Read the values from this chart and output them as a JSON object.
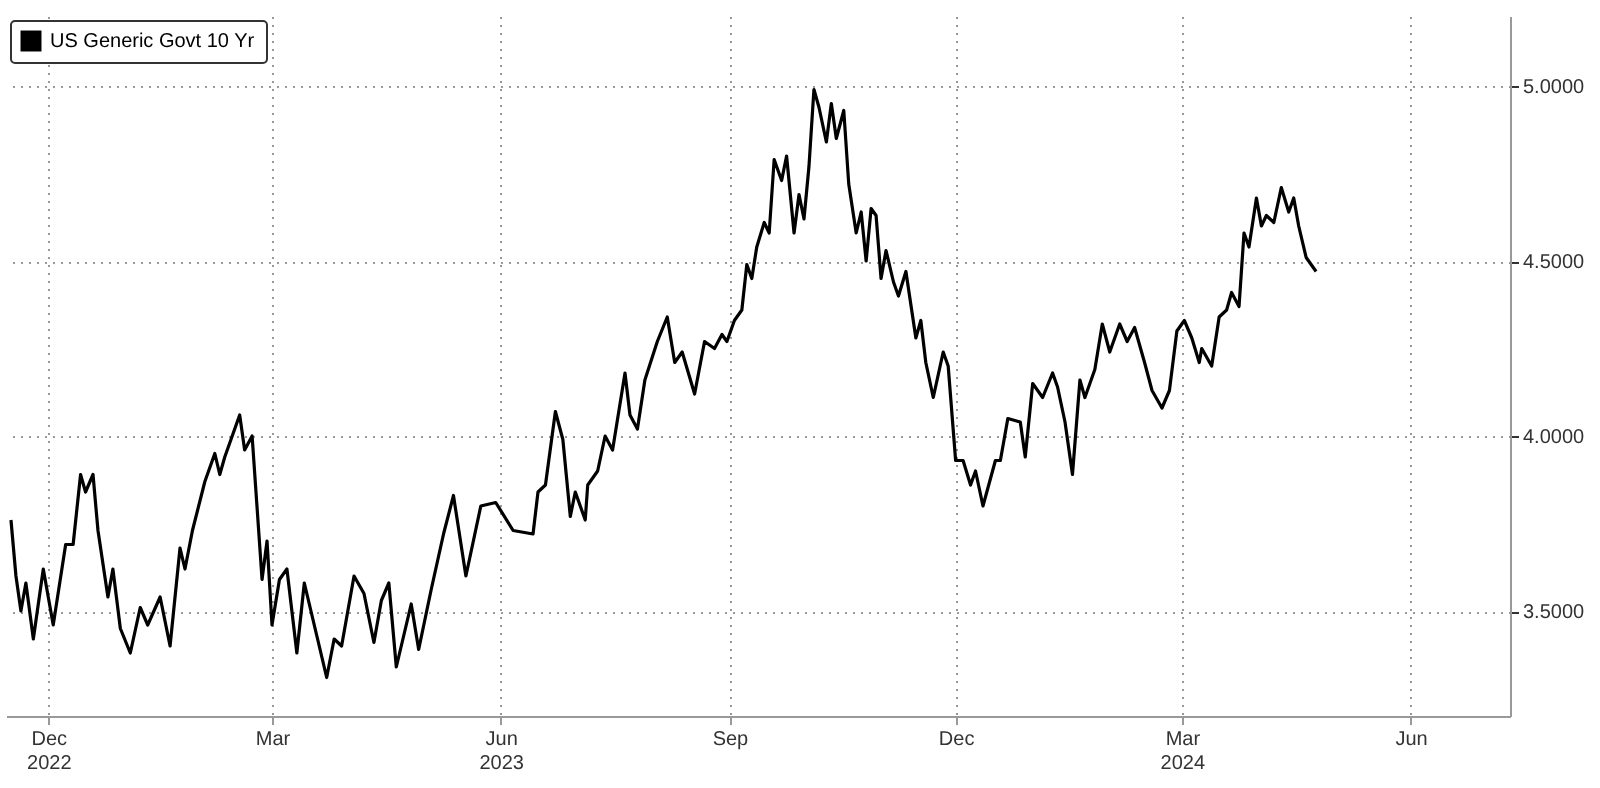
{
  "chart_data": {
    "type": "line",
    "legend": "top left",
    "grid": true,
    "xlim": [
      "2022-11-28",
      "2024-07-25"
    ],
    "ylim": [
      3.2,
      5.2
    ],
    "xticks": [
      {
        "value": "2022-12-15",
        "label": "Dec\n2022"
      },
      {
        "value": "2023-03-15",
        "label": "Mar"
      },
      {
        "value": "2023-06-15",
        "label": "Jun\n2023"
      },
      {
        "value": "2023-09-15",
        "label": "Sep"
      },
      {
        "value": "2023-12-15",
        "label": "Dec"
      },
      {
        "value": "2024-03-15",
        "label": "Mar\n2024"
      },
      {
        "value": "2024-06-15",
        "label": "Jun"
      }
    ],
    "yticks": [
      {
        "value": 3.5,
        "label": "3.5000"
      },
      {
        "value": 4.0,
        "label": "4.0000"
      },
      {
        "value": 4.5,
        "label": "4.5000"
      },
      {
        "value": 5.0,
        "label": "5.0000"
      }
    ],
    "x": [
      "2022-11-30",
      "2022-12-02",
      "2022-12-04",
      "2022-12-06",
      "2022-12-09",
      "2022-12-13",
      "2022-12-17",
      "2022-12-22",
      "2022-12-25",
      "2022-12-28",
      "2022-12-30",
      "2023-01-02",
      "2023-01-04",
      "2023-01-08",
      "2023-01-10",
      "2023-01-13",
      "2023-01-17",
      "2023-01-21",
      "2023-01-24",
      "2023-01-29",
      "2023-02-02",
      "2023-02-06",
      "2023-02-08",
      "2023-02-11",
      "2023-02-16",
      "2023-02-20",
      "2023-02-22",
      "2023-02-24",
      "2023-03-02",
      "2023-03-04",
      "2023-03-07",
      "2023-03-11",
      "2023-03-13",
      "2023-03-15",
      "2023-03-18",
      "2023-03-21",
      "2023-03-25",
      "2023-03-28",
      "2023-04-02",
      "2023-04-06",
      "2023-04-09",
      "2023-04-12",
      "2023-04-17",
      "2023-04-21",
      "2023-04-25",
      "2023-04-28",
      "2023-05-01",
      "2023-05-04",
      "2023-05-10",
      "2023-05-13",
      "2023-05-18",
      "2023-05-23",
      "2023-05-27",
      "2023-06-01",
      "2023-06-04",
      "2023-06-07",
      "2023-06-13",
      "2023-06-20",
      "2023-06-28",
      "2023-06-30",
      "2023-07-03",
      "2023-07-07",
      "2023-07-10",
      "2023-07-13",
      "2023-07-15",
      "2023-07-19",
      "2023-07-20",
      "2023-07-24",
      "2023-07-27",
      "2023-07-30",
      "2023-08-04",
      "2023-08-06",
      "2023-08-09",
      "2023-08-12",
      "2023-08-17",
      "2023-08-21",
      "2023-08-24",
      "2023-08-27",
      "2023-09-01",
      "2023-09-05",
      "2023-09-09",
      "2023-09-12",
      "2023-09-14",
      "2023-09-17",
      "2023-09-20",
      "2023-09-22",
      "2023-09-24",
      "2023-09-26",
      "2023-09-29",
      "2023-10-01",
      "2023-10-03",
      "2023-10-06",
      "2023-10-08",
      "2023-10-11",
      "2023-10-13",
      "2023-10-15",
      "2023-10-17",
      "2023-10-19",
      "2023-10-21",
      "2023-10-24",
      "2023-10-26",
      "2023-10-28",
      "2023-10-31",
      "2023-11-02",
      "2023-11-05",
      "2023-11-07",
      "2023-11-09",
      "2023-11-11",
      "2023-11-13",
      "2023-11-15",
      "2023-11-17",
      "2023-11-20",
      "2023-11-22",
      "2023-11-25",
      "2023-11-29",
      "2023-12-01",
      "2023-12-03",
      "2023-12-06",
      "2023-12-10",
      "2023-12-12",
      "2023-12-15",
      "2023-12-18",
      "2023-12-21",
      "2023-12-23",
      "2023-12-26",
      "2023-12-31",
      "2024-01-02",
      "2024-01-05",
      "2024-01-10",
      "2024-01-12",
      "2024-01-15",
      "2024-01-19",
      "2024-01-23",
      "2024-01-25",
      "2024-01-28",
      "2024-01-31",
      "2024-02-03",
      "2024-02-05",
      "2024-02-09",
      "2024-02-12",
      "2024-02-15",
      "2024-02-19",
      "2024-02-22",
      "2024-02-25",
      "2024-02-29",
      "2024-03-03",
      "2024-03-07",
      "2024-03-10",
      "2024-03-13",
      "2024-03-16",
      "2024-03-19",
      "2024-03-22",
      "2024-03-23",
      "2024-03-27",
      "2024-03-30",
      "2024-04-02",
      "2024-04-04",
      "2024-04-07",
      "2024-04-09",
      "2024-04-11",
      "2024-04-14",
      "2024-04-16",
      "2024-04-18",
      "2024-04-21",
      "2024-04-24",
      "2024-04-27",
      "2024-04-29",
      "2024-05-01",
      "2024-05-04",
      "2024-05-08"
    ],
    "series": [
      {
        "name": "US Generic Govt 10 Yr",
        "color": "#000000",
        "values": [
          3.76,
          3.6,
          3.5,
          3.58,
          3.42,
          3.62,
          3.46,
          3.69,
          3.69,
          3.89,
          3.84,
          3.89,
          3.73,
          3.54,
          3.62,
          3.45,
          3.38,
          3.51,
          3.46,
          3.54,
          3.4,
          3.68,
          3.62,
          3.73,
          3.87,
          3.95,
          3.89,
          3.94,
          4.06,
          3.96,
          4.0,
          3.59,
          3.7,
          3.46,
          3.59,
          3.62,
          3.38,
          3.58,
          3.43,
          3.31,
          3.42,
          3.4,
          3.6,
          3.55,
          3.41,
          3.53,
          3.58,
          3.34,
          3.52,
          3.39,
          3.56,
          3.72,
          3.83,
          3.6,
          3.7,
          3.8,
          3.81,
          3.73,
          3.72,
          3.84,
          3.86,
          4.07,
          3.99,
          3.77,
          3.84,
          3.76,
          3.86,
          3.9,
          4.0,
          3.96,
          4.18,
          4.06,
          4.02,
          4.16,
          4.27,
          4.34,
          4.21,
          4.24,
          4.12,
          4.27,
          4.25,
          4.29,
          4.27,
          4.33,
          4.36,
          4.49,
          4.45,
          4.54,
          4.61,
          4.58,
          4.79,
          4.73,
          4.8,
          4.58,
          4.69,
          4.62,
          4.77,
          4.99,
          4.94,
          4.84,
          4.95,
          4.85,
          4.93,
          4.72,
          4.58,
          4.64,
          4.5,
          4.65,
          4.63,
          4.45,
          4.53,
          4.44,
          4.4,
          4.47,
          4.28,
          4.33,
          4.21,
          4.11,
          4.24,
          4.2,
          3.93,
          3.93,
          3.86,
          3.9,
          3.8,
          3.93,
          3.93,
          4.05,
          4.04,
          3.94,
          4.15,
          4.11,
          4.18,
          4.14,
          4.04,
          3.89,
          4.16,
          4.11,
          4.19,
          4.32,
          4.24,
          4.32,
          4.27,
          4.31,
          4.21,
          4.13,
          4.08,
          4.13,
          4.3,
          4.33,
          4.28,
          4.21,
          4.25,
          4.2,
          4.34,
          4.36,
          4.41,
          4.37,
          4.58,
          4.54,
          4.68,
          4.6,
          4.63,
          4.61,
          4.71,
          4.64,
          4.68,
          4.6,
          4.51,
          4.47
        ]
      }
    ]
  }
}
